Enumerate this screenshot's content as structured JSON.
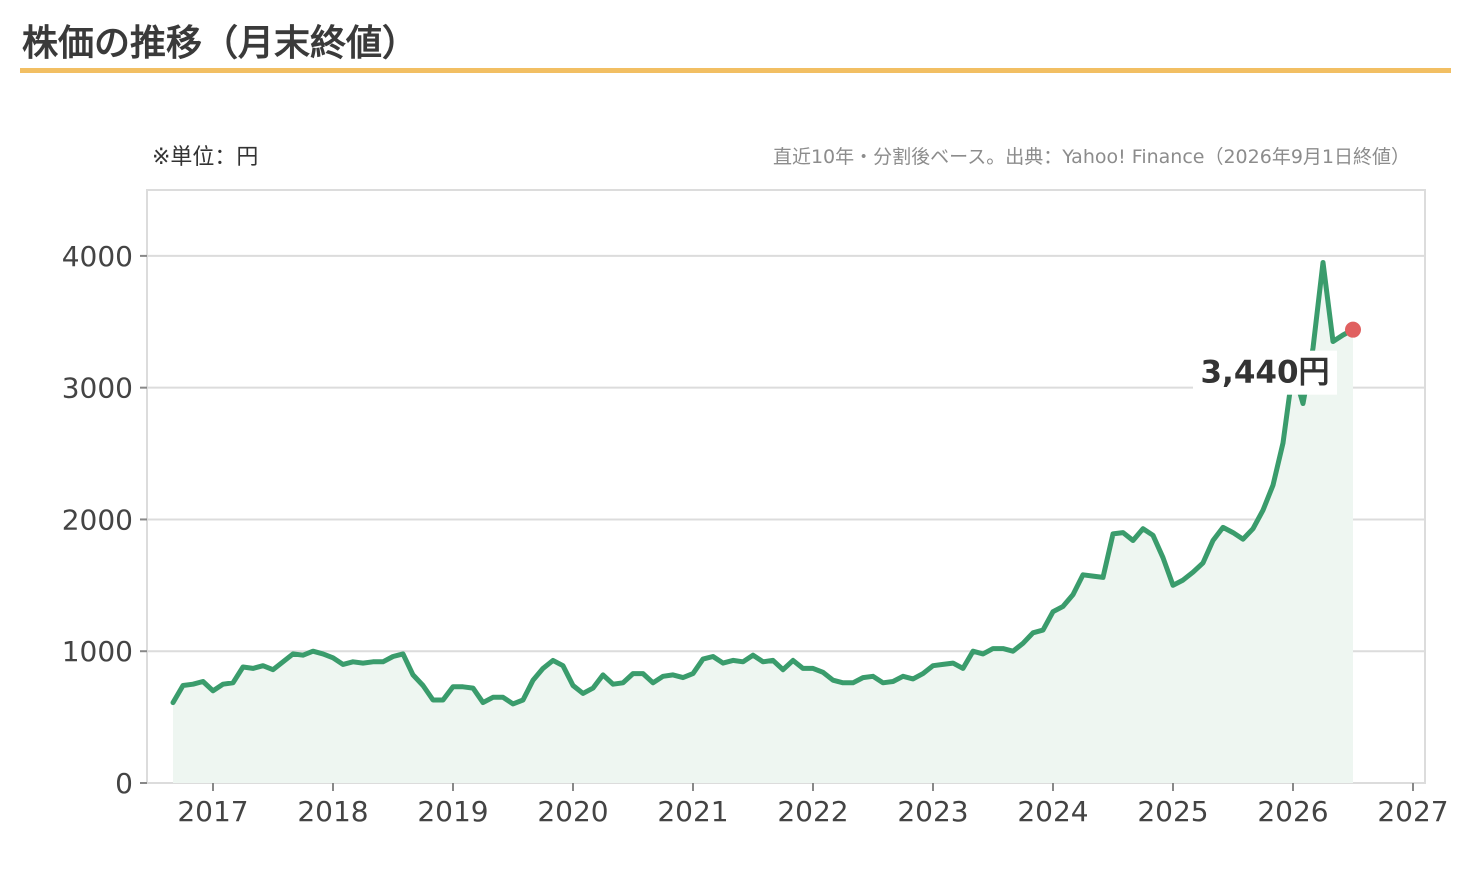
{
  "header": {
    "title": "株価の推移（月末終値）",
    "unit_note": "※単位：円",
    "source_note": "直近10年・分割後ベース。出典：Yahoo! Finance（2026年9月1日終値）"
  },
  "colors": {
    "line": "#3a9c6c",
    "area": "#eef6f1",
    "marker": "#e06060",
    "title_rule": "#f2bf63",
    "grid": "#dcdcdc"
  },
  "chart_data": {
    "type": "area",
    "title": "",
    "xlabel": "",
    "ylabel": "",
    "xlim": [
      2016.45,
      2027.1
    ],
    "ylim": [
      0,
      4500
    ],
    "x_ticks": [
      "2017",
      "2018",
      "2019",
      "2020",
      "2021",
      "2022",
      "2023",
      "2024",
      "2025",
      "2026",
      "2027"
    ],
    "y_ticks": [
      "0",
      "1000",
      "2000",
      "3000",
      "4000"
    ],
    "grid": true,
    "last_value_label": "3,440円",
    "series": [
      {
        "x_start": "2016-09",
        "step": "month",
        "values": [
          610,
          740,
          750,
          770,
          700,
          750,
          760,
          880,
          870,
          890,
          860,
          920,
          980,
          970,
          1000,
          980,
          950,
          900,
          920,
          910,
          920,
          920,
          960,
          980,
          820,
          740,
          630,
          630,
          730,
          730,
          720,
          610,
          650,
          650,
          600,
          630,
          780,
          870,
          930,
          890,
          740,
          680,
          720,
          820,
          750,
          760,
          830,
          830,
          760,
          810,
          820,
          800,
          830,
          940,
          960,
          910,
          930,
          920,
          970,
          920,
          930,
          860,
          930,
          870,
          870,
          840,
          780,
          760,
          760,
          800,
          810,
          760,
          770,
          810,
          790,
          830,
          890,
          900,
          910,
          870,
          1000,
          980,
          1020,
          1020,
          1000,
          1060,
          1140,
          1160,
          1300,
          1340,
          1430,
          1580,
          1570,
          1560,
          1890,
          1900,
          1840,
          1930,
          1880,
          1710,
          1500,
          1540,
          1600,
          1670,
          1840,
          1940,
          1900,
          1850,
          1930,
          2070,
          2260,
          2580,
          3140,
          2880,
          3300,
          3950,
          3350,
          3400,
          3440
        ]
      }
    ]
  }
}
